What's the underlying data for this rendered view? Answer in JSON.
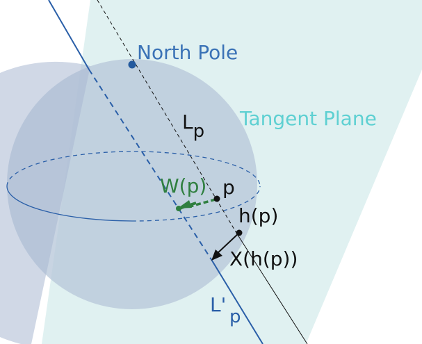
{
  "labels": {
    "north_pole": "North Pole",
    "tangent_plane": "Tangent Plane",
    "lp_main": "L",
    "lp_sub": "p",
    "wp": "W(p)",
    "p": "p",
    "hp": "h(p)",
    "xhp": "X(h(p))",
    "lpp_main": "L'",
    "lpp_sub": "p"
  },
  "colors": {
    "plane_fill": "#d6ecec",
    "sphere_fill": "#b9c8da",
    "sphere_dark": "#a9b8d2",
    "blue_line": "#2a5fa8",
    "north_pole_text": "#3a72b6",
    "tangent_text": "#5ed0d2",
    "green": "#2f7f3f",
    "black": "#111111"
  }
}
